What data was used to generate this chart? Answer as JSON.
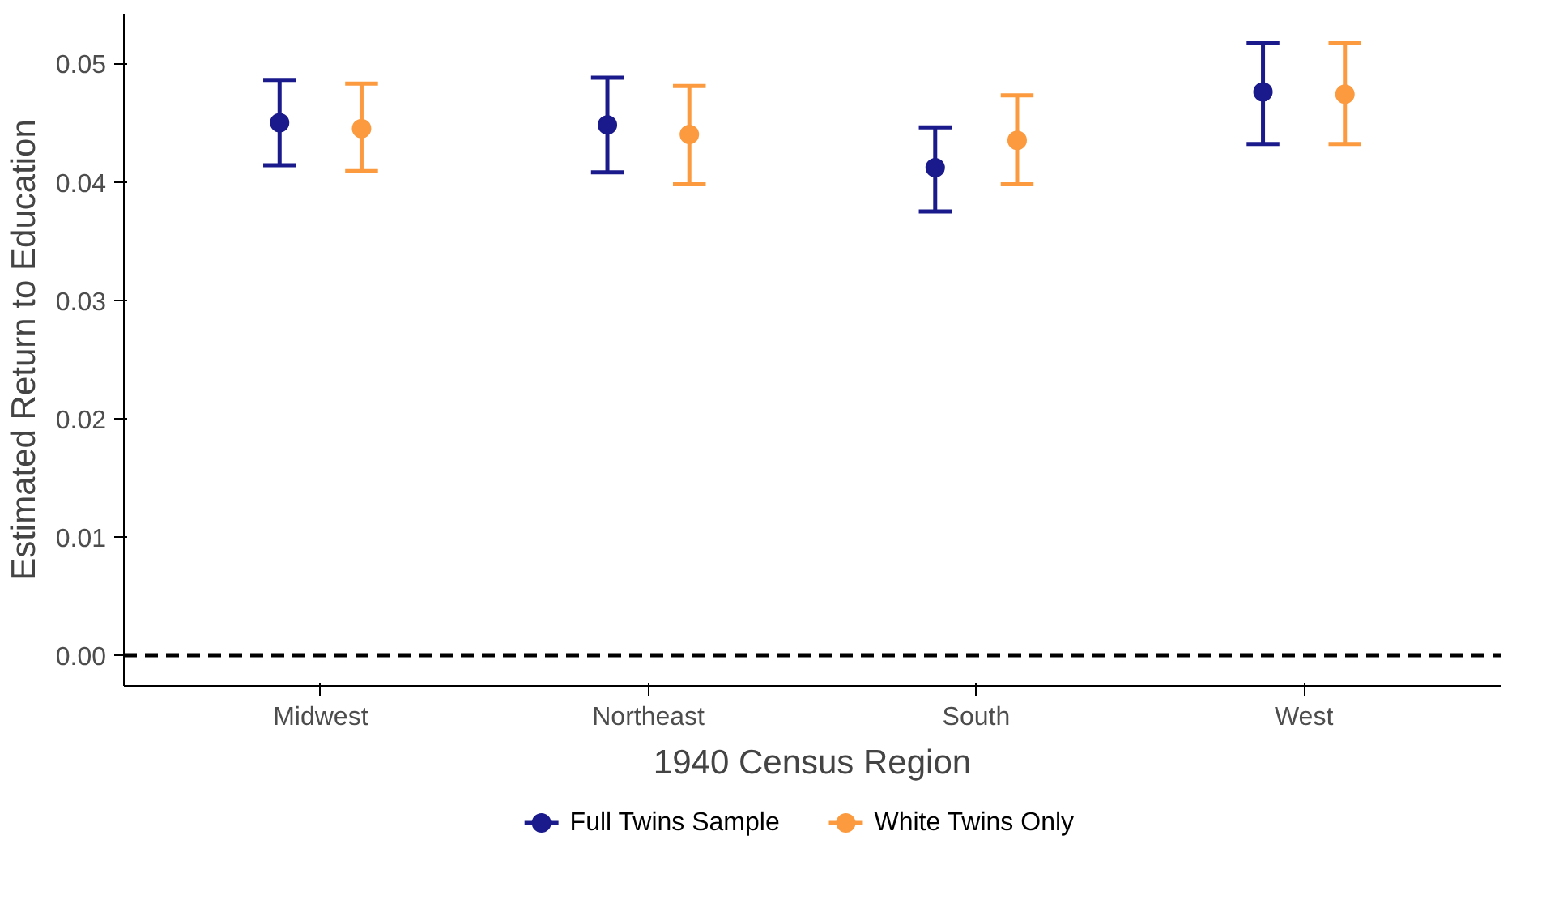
{
  "chart_data": {
    "type": "scatter",
    "xlabel": "1940 Census Region",
    "ylabel": "Estimated Return to Education",
    "categories": [
      "Midwest",
      "Northeast",
      "South",
      "West"
    ],
    "series": [
      {
        "name": "Full Twins Sample",
        "color": "#1a1a8c",
        "values": [
          0.045,
          0.0448,
          0.0412,
          0.0476
        ],
        "errors": [
          [
            0.0414,
            0.0486
          ],
          [
            0.0408,
            0.0488
          ],
          [
            0.0375,
            0.0446
          ],
          [
            0.0432,
            0.0517
          ]
        ]
      },
      {
        "name": "White Twins Only",
        "color": "#fb9a3f",
        "values": [
          0.0445,
          0.044,
          0.0435,
          0.0474
        ],
        "errors": [
          [
            0.0409,
            0.0483
          ],
          [
            0.0398,
            0.0481
          ],
          [
            0.0398,
            0.0473
          ],
          [
            0.0432,
            0.0517
          ]
        ]
      }
    ],
    "ylim": [
      -0.0026,
      0.0542
    ],
    "yticks": [
      {
        "value": 0,
        "label": "0.00"
      },
      {
        "value": 0.01,
        "label": "0.01"
      },
      {
        "value": 0.02,
        "label": "0.02"
      },
      {
        "value": 0.03,
        "label": "0.03"
      },
      {
        "value": 0.04,
        "label": "0.04"
      },
      {
        "value": 0.05,
        "label": "0.05"
      }
    ],
    "ref_lines": [
      {
        "axis": "y",
        "value": 0,
        "line_style": "dashed",
        "color": "#000000"
      }
    ],
    "grid": false,
    "legend": "bottom",
    "marker": "circle"
  }
}
